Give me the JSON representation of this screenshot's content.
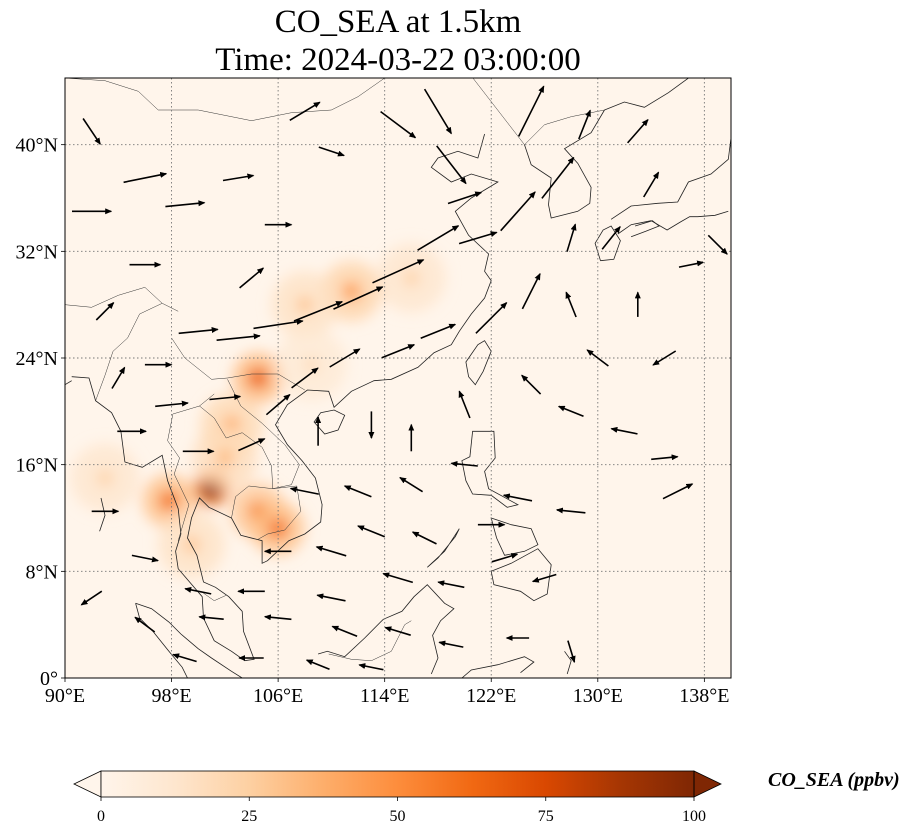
{
  "title": {
    "line1": "CO_SEA at 1.5km",
    "line2": "Time: 2024-03-22 03:00:00"
  },
  "map": {
    "lon_range": [
      90,
      140
    ],
    "lat_range": [
      0,
      45
    ],
    "lon_ticks": [
      {
        "value": 90,
        "label": "90°E"
      },
      {
        "value": 98,
        "label": "98°E"
      },
      {
        "value": 106,
        "label": "106°E"
      },
      {
        "value": 114,
        "label": "114°E"
      },
      {
        "value": 122,
        "label": "122°E"
      },
      {
        "value": 130,
        "label": "130°E"
      },
      {
        "value": 138,
        "label": "138°E"
      }
    ],
    "lat_ticks": [
      {
        "value": 0,
        "label": "0°"
      },
      {
        "value": 8,
        "label": "8°N"
      },
      {
        "value": 16,
        "label": "16°N"
      },
      {
        "value": 24,
        "label": "24°N"
      },
      {
        "value": 32,
        "label": "32°N"
      },
      {
        "value": 40,
        "label": "40°N"
      }
    ],
    "gridlines": true,
    "background_color": "#fff5eb"
  },
  "colorbar": {
    "label": "CO_SEA (ppbv)",
    "min": 0,
    "max": 100,
    "extend": "both",
    "ticks": [
      {
        "value": 0,
        "label": "0"
      },
      {
        "value": 25,
        "label": "25"
      },
      {
        "value": 50,
        "label": "50"
      },
      {
        "value": 75,
        "label": "75"
      },
      {
        "value": 100,
        "label": "100"
      }
    ],
    "colormap": [
      "#fff5eb",
      "#fee6ce",
      "#fdd0a2",
      "#fdae6b",
      "#fd8d3c",
      "#f16913",
      "#d94801",
      "#a63603",
      "#7f2704"
    ]
  },
  "chart_data": {
    "type": "heatmap",
    "variable": "CO_SEA",
    "units": "ppbv",
    "hotspots": [
      {
        "lon": 101.0,
        "lat": 14.2,
        "value": 95
      },
      {
        "lon": 97.8,
        "lat": 13.3,
        "value": 60
      },
      {
        "lon": 104.5,
        "lat": 12.5,
        "value": 55
      },
      {
        "lon": 106.0,
        "lat": 11.2,
        "value": 60
      },
      {
        "lon": 104.5,
        "lat": 22.5,
        "value": 65
      },
      {
        "lon": 102.5,
        "lat": 19.0,
        "value": 40
      },
      {
        "lon": 102.0,
        "lat": 16.5,
        "value": 35
      },
      {
        "lon": 111.5,
        "lat": 29.0,
        "value": 45
      },
      {
        "lon": 108.0,
        "lat": 28.0,
        "value": 30
      },
      {
        "lon": 116.0,
        "lat": 30.0,
        "value": 25
      },
      {
        "lon": 93.0,
        "lat": 15.0,
        "value": 25
      },
      {
        "lon": 99.5,
        "lat": 10.0,
        "value": 30
      },
      {
        "lon": 108.5,
        "lat": 23.5,
        "value": 20
      }
    ],
    "wind_vectors": [
      {
        "lon": 115,
        "lat": 30.5,
        "u": 1.0,
        "v": 0.45,
        "speed": 1.0
      },
      {
        "lon": 112,
        "lat": 28.5,
        "u": 1.0,
        "v": 0.45,
        "speed": 0.95
      },
      {
        "lon": 109,
        "lat": 27.5,
        "u": 1.0,
        "v": 0.4,
        "speed": 0.9
      },
      {
        "lon": 106,
        "lat": 26.5,
        "u": 1.0,
        "v": 0.15,
        "speed": 0.85
      },
      {
        "lon": 103,
        "lat": 25.5,
        "u": 1.0,
        "v": 0.1,
        "speed": 0.7
      },
      {
        "lon": 100,
        "lat": 26.0,
        "u": 1.0,
        "v": 0.1,
        "speed": 0.6
      },
      {
        "lon": 118,
        "lat": 33.0,
        "u": 1.0,
        "v": 0.6,
        "speed": 0.8
      },
      {
        "lon": 121,
        "lat": 33.0,
        "u": 1.0,
        "v": 0.3,
        "speed": 0.6
      },
      {
        "lon": 124,
        "lat": 35.0,
        "u": 0.8,
        "v": 0.9,
        "speed": 0.9
      },
      {
        "lon": 127,
        "lat": 37.5,
        "u": 0.7,
        "v": 0.9,
        "speed": 0.9
      },
      {
        "lon": 125,
        "lat": 42.5,
        "u": 0.5,
        "v": 1.0,
        "speed": 1.0
      },
      {
        "lon": 118,
        "lat": 42.5,
        "u": 0.6,
        "v": -1.0,
        "speed": 0.9
      },
      {
        "lon": 115,
        "lat": 41.5,
        "u": 0.8,
        "v": -0.6,
        "speed": 0.7
      },
      {
        "lon": 119,
        "lat": 38.5,
        "u": 0.7,
        "v": -0.9,
        "speed": 0.8
      },
      {
        "lon": 120,
        "lat": 36.0,
        "u": 0.6,
        "v": 0.2,
        "speed": 0.5
      },
      {
        "lon": 96,
        "lat": 37.5,
        "u": 1.0,
        "v": 0.2,
        "speed": 0.7
      },
      {
        "lon": 99,
        "lat": 35.5,
        "u": 1.0,
        "v": 0.1,
        "speed": 0.6
      },
      {
        "lon": 92,
        "lat": 35.0,
        "u": 1.0,
        "v": 0.0,
        "speed": 0.6
      },
      {
        "lon": 103,
        "lat": 37.5,
        "u": 0.6,
        "v": 0.1,
        "speed": 0.4
      },
      {
        "lon": 104,
        "lat": 30.0,
        "u": 0.6,
        "v": 0.5,
        "speed": 0.4
      },
      {
        "lon": 96,
        "lat": 31.0,
        "u": 1.0,
        "v": 0.0,
        "speed": 0.4
      },
      {
        "lon": 92,
        "lat": 41.0,
        "u": 0.4,
        "v": -0.6,
        "speed": 0.4
      },
      {
        "lon": 108,
        "lat": 42.5,
        "u": 0.5,
        "v": 0.3,
        "speed": 0.5
      },
      {
        "lon": 110,
        "lat": 39.5,
        "u": 0.6,
        "v": -0.2,
        "speed": 0.3
      },
      {
        "lon": 106,
        "lat": 34.0,
        "u": 0.5,
        "v": 0.0,
        "speed": 0.3
      },
      {
        "lon": 122,
        "lat": 27.0,
        "u": 0.8,
        "v": 0.8,
        "speed": 0.7
      },
      {
        "lon": 125,
        "lat": 29.0,
        "u": 0.5,
        "v": 1.0,
        "speed": 0.6
      },
      {
        "lon": 118,
        "lat": 26.0,
        "u": 1.0,
        "v": 0.4,
        "speed": 0.55
      },
      {
        "lon": 115,
        "lat": 24.5,
        "u": 1.0,
        "v": 0.4,
        "speed": 0.5
      },
      {
        "lon": 111,
        "lat": 24.0,
        "u": 1.0,
        "v": 0.6,
        "speed": 0.5
      },
      {
        "lon": 108,
        "lat": 22.5,
        "u": 0.8,
        "v": 0.6,
        "speed": 0.45
      },
      {
        "lon": 106,
        "lat": 20.5,
        "u": 0.7,
        "v": 0.6,
        "speed": 0.4
      },
      {
        "lon": 102,
        "lat": 21.0,
        "u": 1.0,
        "v": 0.1,
        "speed": 0.4
      },
      {
        "lon": 98,
        "lat": 20.5,
        "u": 1.0,
        "v": 0.1,
        "speed": 0.45
      },
      {
        "lon": 95,
        "lat": 18.5,
        "u": 1.0,
        "v": 0.0,
        "speed": 0.35
      },
      {
        "lon": 100,
        "lat": 17.0,
        "u": 1.0,
        "v": 0.0,
        "speed": 0.4
      },
      {
        "lon": 104,
        "lat": 17.5,
        "u": 0.9,
        "v": 0.4,
        "speed": 0.35
      },
      {
        "lon": 109,
        "lat": 18.5,
        "u": 0.0,
        "v": 1.0,
        "speed": 0.35
      },
      {
        "lon": 113,
        "lat": 19.0,
        "u": 0.0,
        "v": -1.0,
        "speed": 0.3
      },
      {
        "lon": 116,
        "lat": 18.0,
        "u": 0.0,
        "v": 1.0,
        "speed": 0.3
      },
      {
        "lon": 120,
        "lat": 20.5,
        "u": -0.4,
        "v": 1.0,
        "speed": 0.35
      },
      {
        "lon": 125,
        "lat": 22.0,
        "u": -0.6,
        "v": 0.6,
        "speed": 0.3
      },
      {
        "lon": 128,
        "lat": 20.0,
        "u": -1.0,
        "v": 0.4,
        "speed": 0.3
      },
      {
        "lon": 132,
        "lat": 18.5,
        "u": -1.0,
        "v": 0.2,
        "speed": 0.3
      },
      {
        "lon": 135,
        "lat": 16.5,
        "u": 1.0,
        "v": 0.1,
        "speed": 0.3
      },
      {
        "lon": 136,
        "lat": 14.0,
        "u": 1.0,
        "v": 0.5,
        "speed": 0.45
      },
      {
        "lon": 135,
        "lat": 24.0,
        "u": -0.8,
        "v": -0.5,
        "speed": 0.3
      },
      {
        "lon": 130,
        "lat": 24.0,
        "u": -0.8,
        "v": 0.6,
        "speed": 0.3
      },
      {
        "lon": 128,
        "lat": 28.0,
        "u": -0.4,
        "v": 1.0,
        "speed": 0.3
      },
      {
        "lon": 133,
        "lat": 28.0,
        "u": 0.0,
        "v": 1.0,
        "speed": 0.25
      },
      {
        "lon": 137,
        "lat": 31.0,
        "u": 1.0,
        "v": 0.2,
        "speed": 0.25
      },
      {
        "lon": 139,
        "lat": 32.5,
        "u": 0.8,
        "v": -0.8,
        "speed": 0.3
      },
      {
        "lon": 131,
        "lat": 33.0,
        "u": 0.8,
        "v": 1.0,
        "speed": 0.35
      },
      {
        "lon": 134,
        "lat": 37.0,
        "u": 0.6,
        "v": 1.0,
        "speed": 0.35
      },
      {
        "lon": 128,
        "lat": 33.0,
        "u": 0.3,
        "v": 1.0,
        "speed": 0.35
      },
      {
        "lon": 129,
        "lat": 41.5,
        "u": 0.4,
        "v": 1.0,
        "speed": 0.4
      },
      {
        "lon": 133,
        "lat": 41.0,
        "u": 0.7,
        "v": 0.8,
        "speed": 0.4
      },
      {
        "lon": 120,
        "lat": 16.0,
        "u": -1.0,
        "v": 0.1,
        "speed": 0.3
      },
      {
        "lon": 116,
        "lat": 14.5,
        "u": -0.8,
        "v": 0.5,
        "speed": 0.3
      },
      {
        "lon": 112,
        "lat": 14.0,
        "u": -1.0,
        "v": 0.4,
        "speed": 0.35
      },
      {
        "lon": 108,
        "lat": 14.0,
        "u": -1.0,
        "v": 0.2,
        "speed": 0.35
      },
      {
        "lon": 124,
        "lat": 13.5,
        "u": -1.0,
        "v": 0.2,
        "speed": 0.35
      },
      {
        "lon": 128,
        "lat": 12.5,
        "u": -1.0,
        "v": 0.1,
        "speed": 0.35
      },
      {
        "lon": 122,
        "lat": 11.5,
        "u": 1.0,
        "v": 0.0,
        "speed": 0.3
      },
      {
        "lon": 117,
        "lat": 10.5,
        "u": -1.0,
        "v": 0.5,
        "speed": 0.3
      },
      {
        "lon": 113,
        "lat": 11.0,
        "u": -1.0,
        "v": 0.4,
        "speed": 0.35
      },
      {
        "lon": 110,
        "lat": 9.5,
        "u": -1.0,
        "v": 0.3,
        "speed": 0.4
      },
      {
        "lon": 106,
        "lat": 9.5,
        "u": -1.0,
        "v": 0.0,
        "speed": 0.3
      },
      {
        "lon": 115,
        "lat": 7.5,
        "u": -1.0,
        "v": 0.3,
        "speed": 0.4
      },
      {
        "lon": 119,
        "lat": 7.0,
        "u": -1.0,
        "v": 0.2,
        "speed": 0.3
      },
      {
        "lon": 123,
        "lat": 9.0,
        "u": 1.0,
        "v": 0.3,
        "speed": 0.3
      },
      {
        "lon": 126,
        "lat": 7.5,
        "u": -1.0,
        "v": -0.3,
        "speed": 0.25
      },
      {
        "lon": 110,
        "lat": 6.0,
        "u": -1.0,
        "v": 0.2,
        "speed": 0.35
      },
      {
        "lon": 104,
        "lat": 6.5,
        "u": -1.0,
        "v": 0.0,
        "speed": 0.3
      },
      {
        "lon": 100,
        "lat": 6.5,
        "u": -1.0,
        "v": 0.2,
        "speed": 0.3
      },
      {
        "lon": 96,
        "lat": 9.0,
        "u": 1.0,
        "v": -0.2,
        "speed": 0.3
      },
      {
        "lon": 93,
        "lat": 12.5,
        "u": 1.0,
        "v": 0.0,
        "speed": 0.3
      },
      {
        "lon": 92,
        "lat": 6.0,
        "u": -0.6,
        "v": -0.4,
        "speed": 0.25
      },
      {
        "lon": 96,
        "lat": 4.0,
        "u": -0.8,
        "v": 0.6,
        "speed": 0.25
      },
      {
        "lon": 101,
        "lat": 4.5,
        "u": -1.0,
        "v": 0.1,
        "speed": 0.25
      },
      {
        "lon": 106,
        "lat": 4.5,
        "u": -1.0,
        "v": 0.1,
        "speed": 0.3
      },
      {
        "lon": 111,
        "lat": 3.5,
        "u": -1.0,
        "v": 0.4,
        "speed": 0.3
      },
      {
        "lon": 115,
        "lat": 3.5,
        "u": -1.0,
        "v": 0.3,
        "speed": 0.3
      },
      {
        "lon": 119,
        "lat": 2.5,
        "u": -1.0,
        "v": 0.2,
        "speed": 0.25
      },
      {
        "lon": 124,
        "lat": 3.0,
        "u": -1.0,
        "v": 0.0,
        "speed": 0.2
      },
      {
        "lon": 128,
        "lat": 2.0,
        "u": 0.3,
        "v": -1.0,
        "speed": 0.2
      },
      {
        "lon": 99,
        "lat": 1.5,
        "u": -1.0,
        "v": 0.3,
        "speed": 0.25
      },
      {
        "lon": 104,
        "lat": 1.5,
        "u": -1.0,
        "v": 0.0,
        "speed": 0.25
      },
      {
        "lon": 109,
        "lat": 1.0,
        "u": -1.0,
        "v": 0.4,
        "speed": 0.25
      },
      {
        "lon": 113,
        "lat": 0.8,
        "u": -1.0,
        "v": 0.2,
        "speed": 0.25
      },
      {
        "lon": 94,
        "lat": 22.5,
        "u": 0.3,
        "v": 0.5,
        "speed": 0.25
      },
      {
        "lon": 97,
        "lat": 23.5,
        "u": 1.0,
        "v": 0.0,
        "speed": 0.3
      },
      {
        "lon": 93,
        "lat": 27.5,
        "u": 0.5,
        "v": 0.5,
        "speed": 0.25
      }
    ]
  }
}
